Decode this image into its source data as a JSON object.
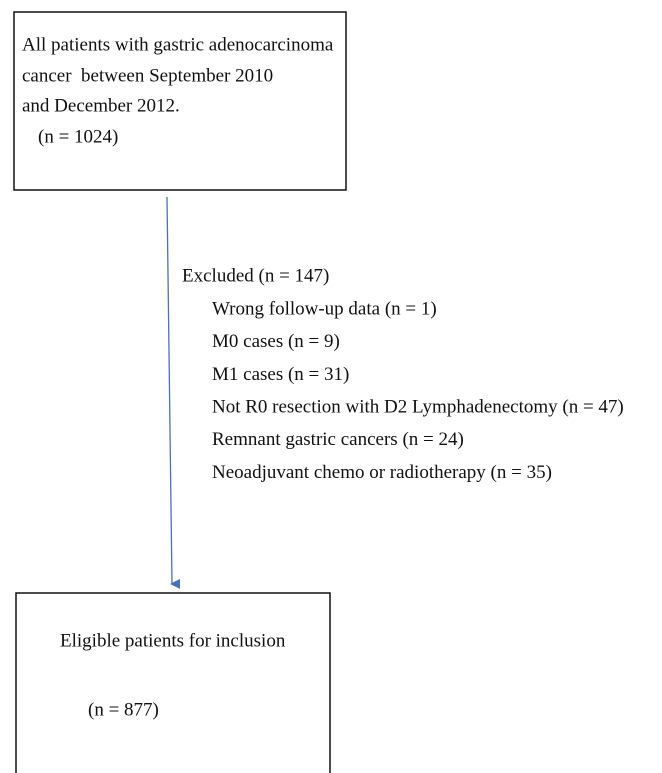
{
  "nodes": [
    {
      "lines": [
        "All patients with gastric adenocarcinoma",
        "cancer  between September 2010",
        "and December 2012.",
        "(n = 1024)"
      ]
    },
    {
      "lines": [
        "Eligible patients for inclusion",
        "(n = 877)"
      ]
    }
  ],
  "exclusion": {
    "title": "Excluded (n = 147)",
    "items": [
      "Wrong follow-up data (n = 1)",
      "M0 cases (n = 9)",
      "M1 cases (n = 31)",
      "Not R0 resection with D2 Lymphadenectomy (n = 47)",
      "Remnant gastric cancers (n = 24)",
      "Neoadjuvant chemo or radiotherapy (n = 35)"
    ]
  }
}
